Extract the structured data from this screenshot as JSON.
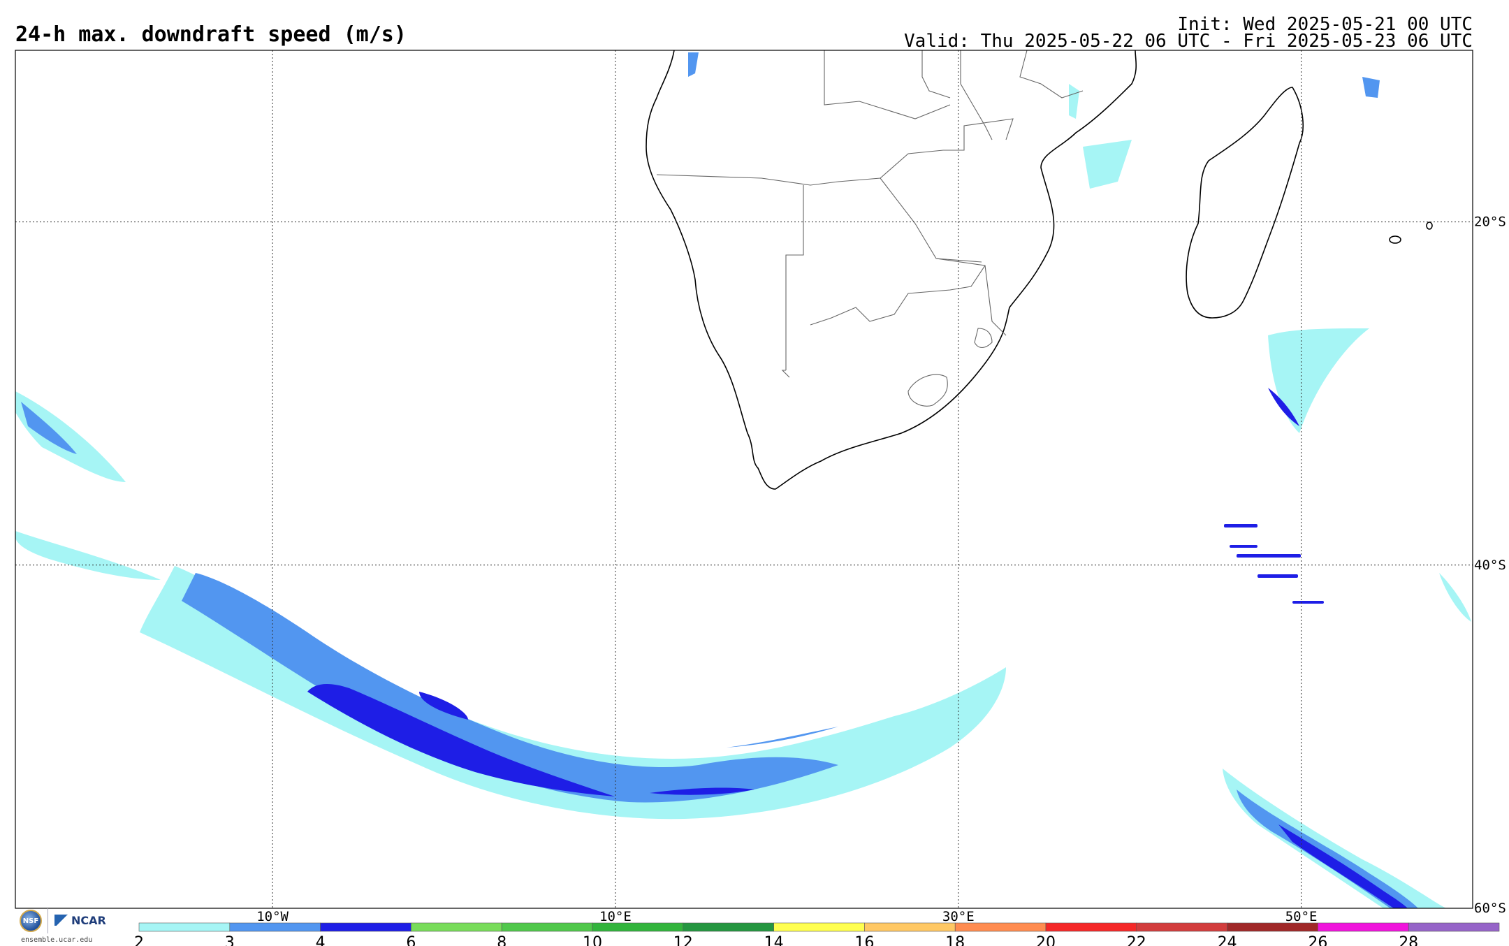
{
  "header": {
    "title": "24-h max. downdraft speed (m/s)",
    "init": "Init: Wed 2025-05-21 00 UTC",
    "valid": "Valid: Thu 2025-05-22 06 UTC - Fri 2025-05-23 06 UTC"
  },
  "map": {
    "lon_range": [
      -25,
      60
    ],
    "lat_range": [
      -60,
      -10
    ],
    "lon_ticks": [
      {
        "lon": -10,
        "label": "10°W"
      },
      {
        "lon": 10,
        "label": "10°E"
      },
      {
        "lon": 30,
        "label": "30°E"
      },
      {
        "lon": 50,
        "label": "50°E"
      }
    ],
    "lat_ticks": [
      {
        "lat": -20,
        "label": "20°S"
      },
      {
        "lat": -40,
        "label": "40°S"
      },
      {
        "lat": -60,
        "label": "60°S"
      }
    ],
    "grid": true,
    "land_fill": "#ffffff",
    "ocean_fill": "#ffffff"
  },
  "colorbar": {
    "levels": [
      "2",
      "3",
      "4",
      "6",
      "8",
      "10",
      "12",
      "14",
      "16",
      "18",
      "20",
      "22",
      "24",
      "26",
      "28"
    ],
    "colors": [
      "#a6f5f5",
      "#5296f0",
      "#1e1ee6",
      "#78dc5a",
      "#50c84b",
      "#32b43c",
      "#249640",
      "#ffff50",
      "#ffc864",
      "#ff8c50",
      "#f52828",
      "#d23c3c",
      "#a02828",
      "#f014dc",
      "#9664c8"
    ]
  },
  "credits": {
    "nsf": "NSF",
    "ncar": "NCAR",
    "url": "ensemble.ucar.edu"
  }
}
